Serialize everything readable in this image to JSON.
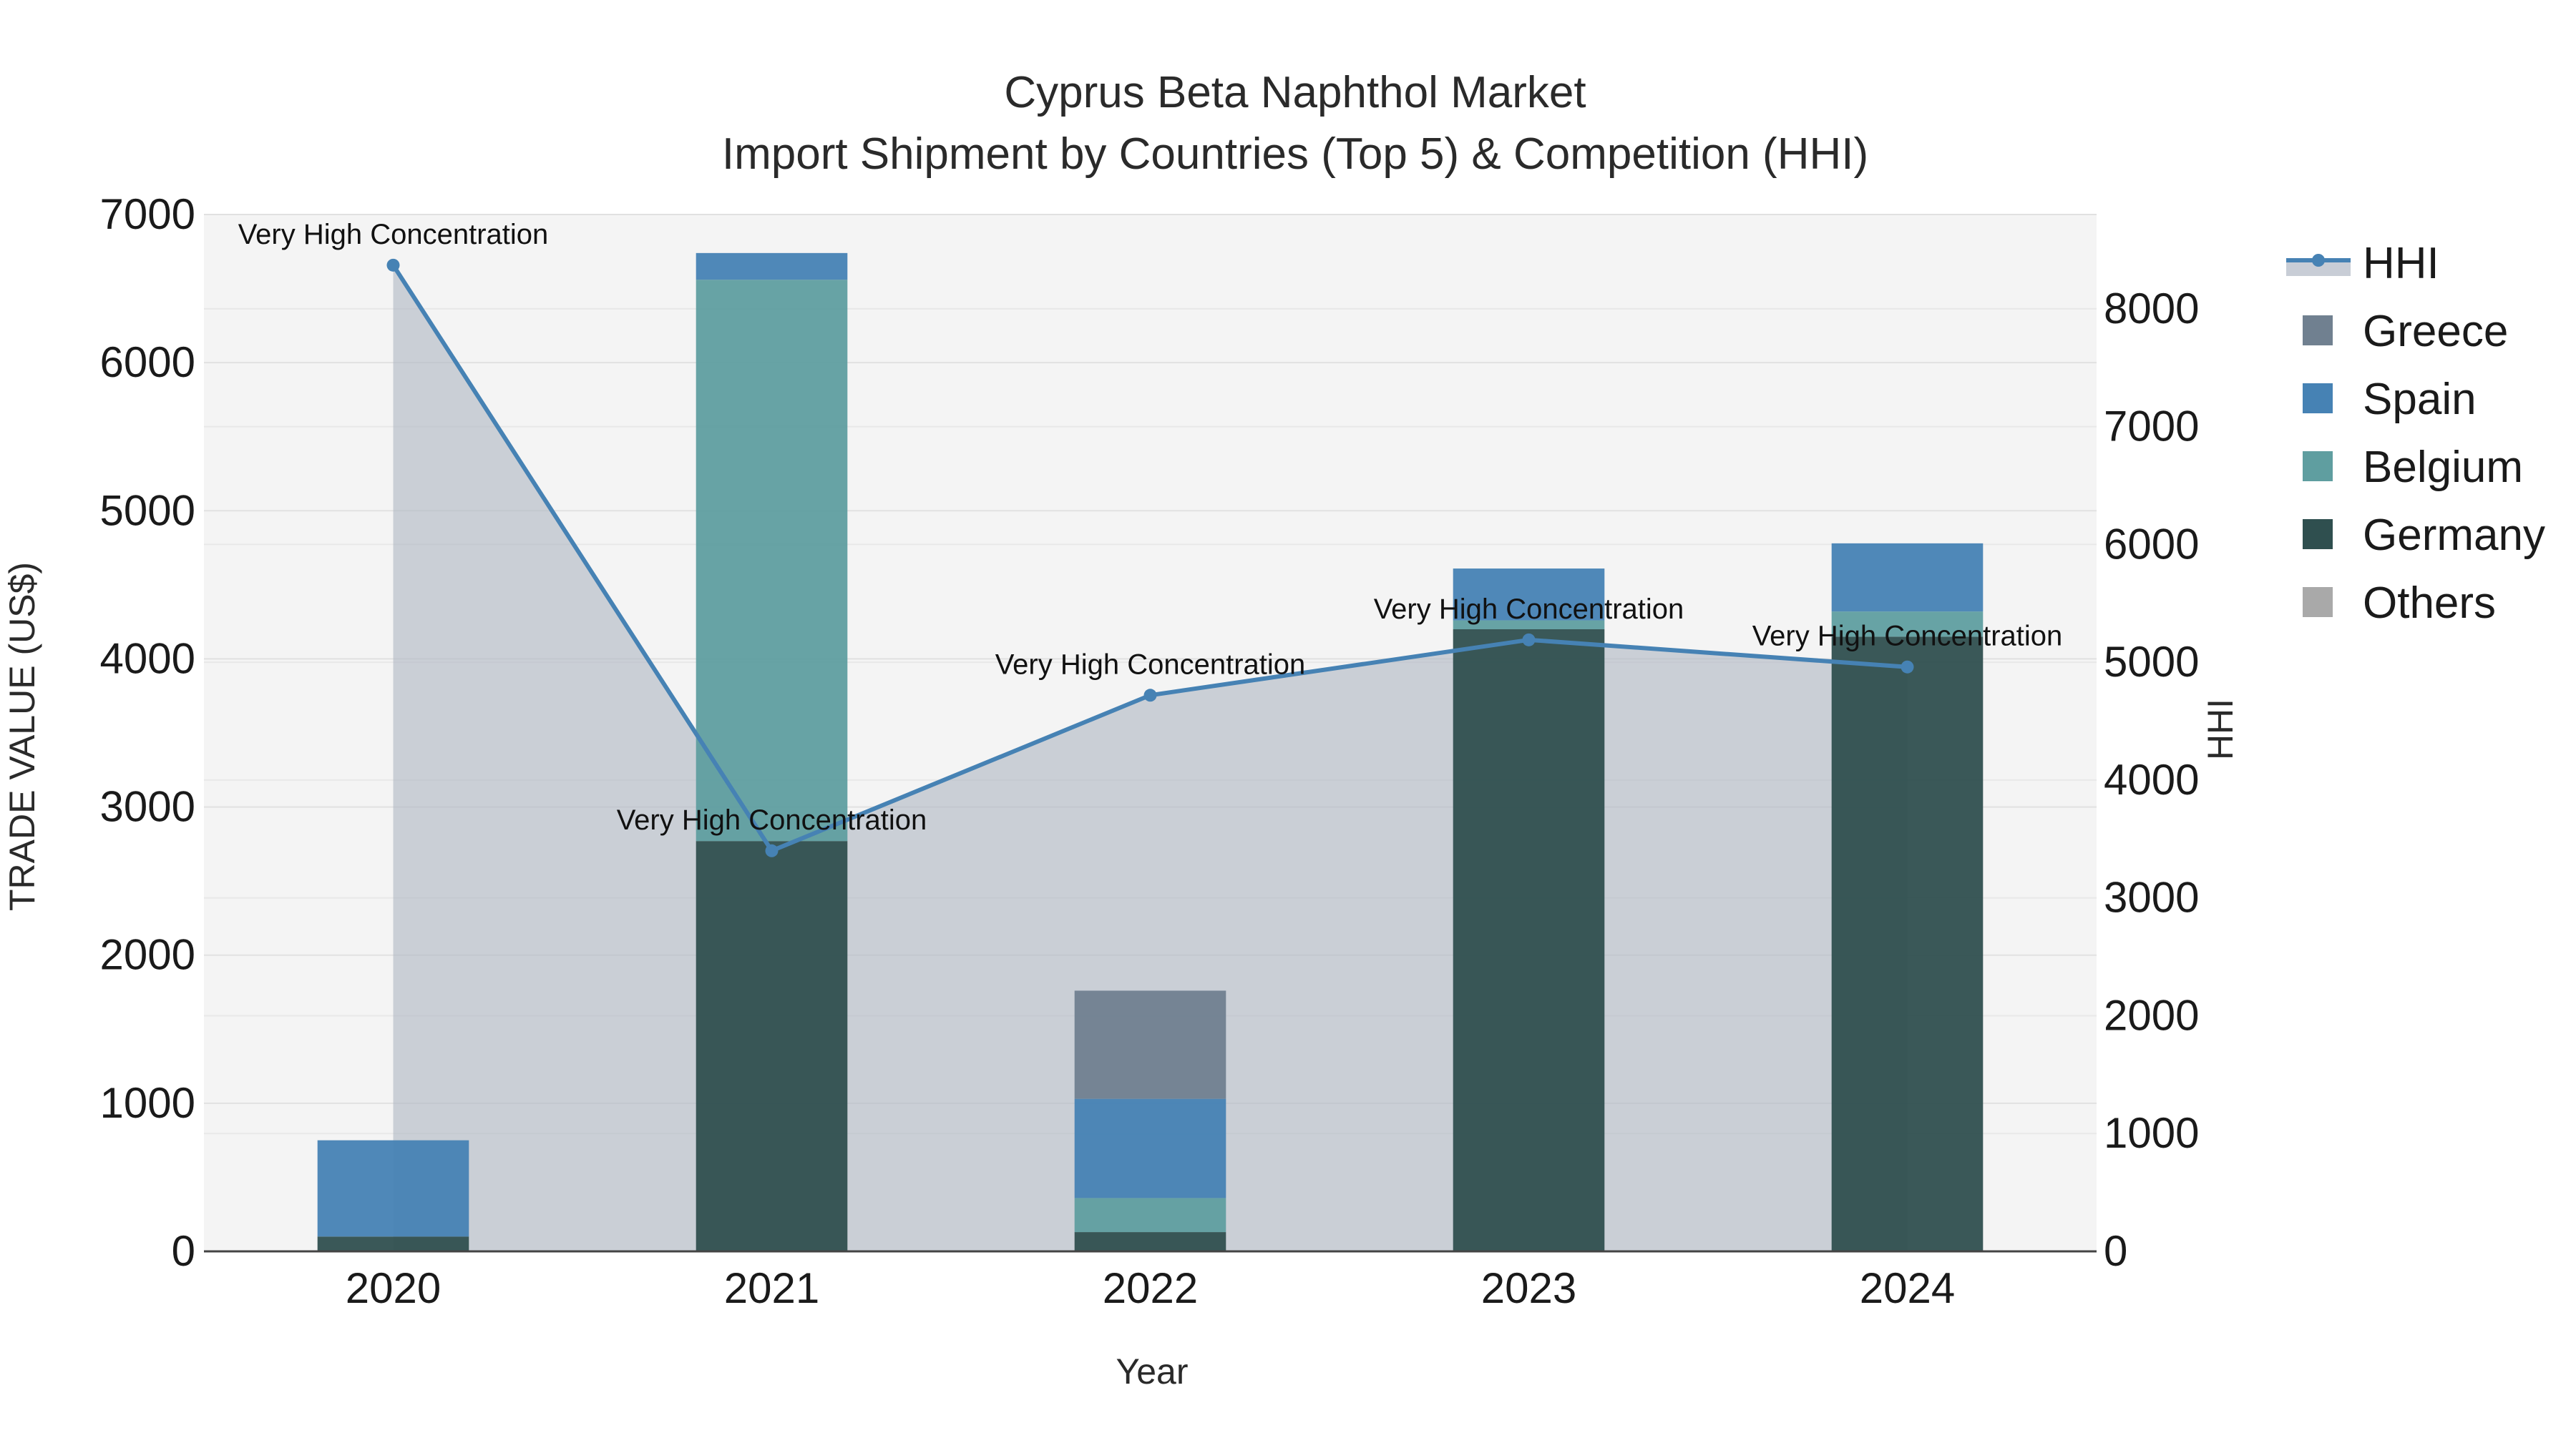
{
  "chart_data": {
    "type": "bar",
    "title": "Cyprus Beta Naphthol Market",
    "subtitle": "Import Shipment by Countries (Top 5) & Competition (HHI)",
    "xlabel": "Year",
    "ylabel": "TRADE VALUE (US$)",
    "y2label": "HHI",
    "categories": [
      "2020",
      "2021",
      "2022",
      "2023",
      "2024"
    ],
    "ylim": [
      0,
      7000
    ],
    "y2lim": [
      0,
      8800
    ],
    "y_ticks": [
      0,
      1000,
      2000,
      3000,
      4000,
      5000,
      6000,
      7000
    ],
    "y2_ticks": [
      0,
      1000,
      2000,
      3000,
      4000,
      5000,
      6000,
      7000,
      8000
    ],
    "grid": true,
    "legend_position": "right",
    "series": [
      {
        "name": "Germany",
        "kind": "bar",
        "color": "#2f4f4f",
        "values": [
          100,
          2770,
          130,
          4200,
          4150
        ]
      },
      {
        "name": "Belgium",
        "kind": "bar",
        "color": "#5f9ea0",
        "values": [
          0,
          3790,
          230,
          60,
          170
        ]
      },
      {
        "name": "Spain",
        "kind": "bar",
        "color": "#4682b4",
        "values": [
          650,
          180,
          670,
          350,
          460
        ]
      },
      {
        "name": "Greece",
        "kind": "bar",
        "color": "#708090",
        "values": [
          0,
          0,
          730,
          0,
          0
        ]
      },
      {
        "name": "Others",
        "kind": "bar",
        "color": "#a9a9a9",
        "values": [
          0,
          0,
          0,
          0,
          0
        ]
      },
      {
        "name": "HHI",
        "kind": "line-area",
        "axis": "y2",
        "color": "#4682b4",
        "fill": "#b0b8c4",
        "values": [
          8370,
          3400,
          4720,
          5190,
          4960
        ]
      }
    ],
    "annotations": [
      {
        "x": "2020",
        "text": "Very High Concentration"
      },
      {
        "x": "2021",
        "text": "Very High Concentration"
      },
      {
        "x": "2022",
        "text": "Very High Concentration"
      },
      {
        "x": "2023",
        "text": "Very High Concentration"
      },
      {
        "x": "2024",
        "text": "Very High Concentration"
      }
    ],
    "legend": [
      "HHI",
      "Greece",
      "Spain",
      "Belgium",
      "Germany",
      "Others"
    ]
  }
}
